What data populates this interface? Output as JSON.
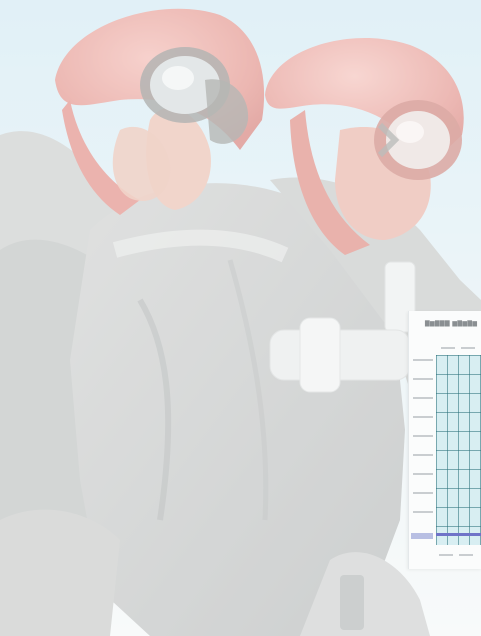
{
  "photo": {
    "subject": "two-firefighters",
    "helmet_color": "#d9776f",
    "jacket_color": "#b9bcbc",
    "sky_color": "#cfe7f0"
  },
  "chart_thumbnail": {
    "grid_color": "#2e7a84",
    "plot_bg": "#d8eef2",
    "series_color": "#6f73c8"
  }
}
